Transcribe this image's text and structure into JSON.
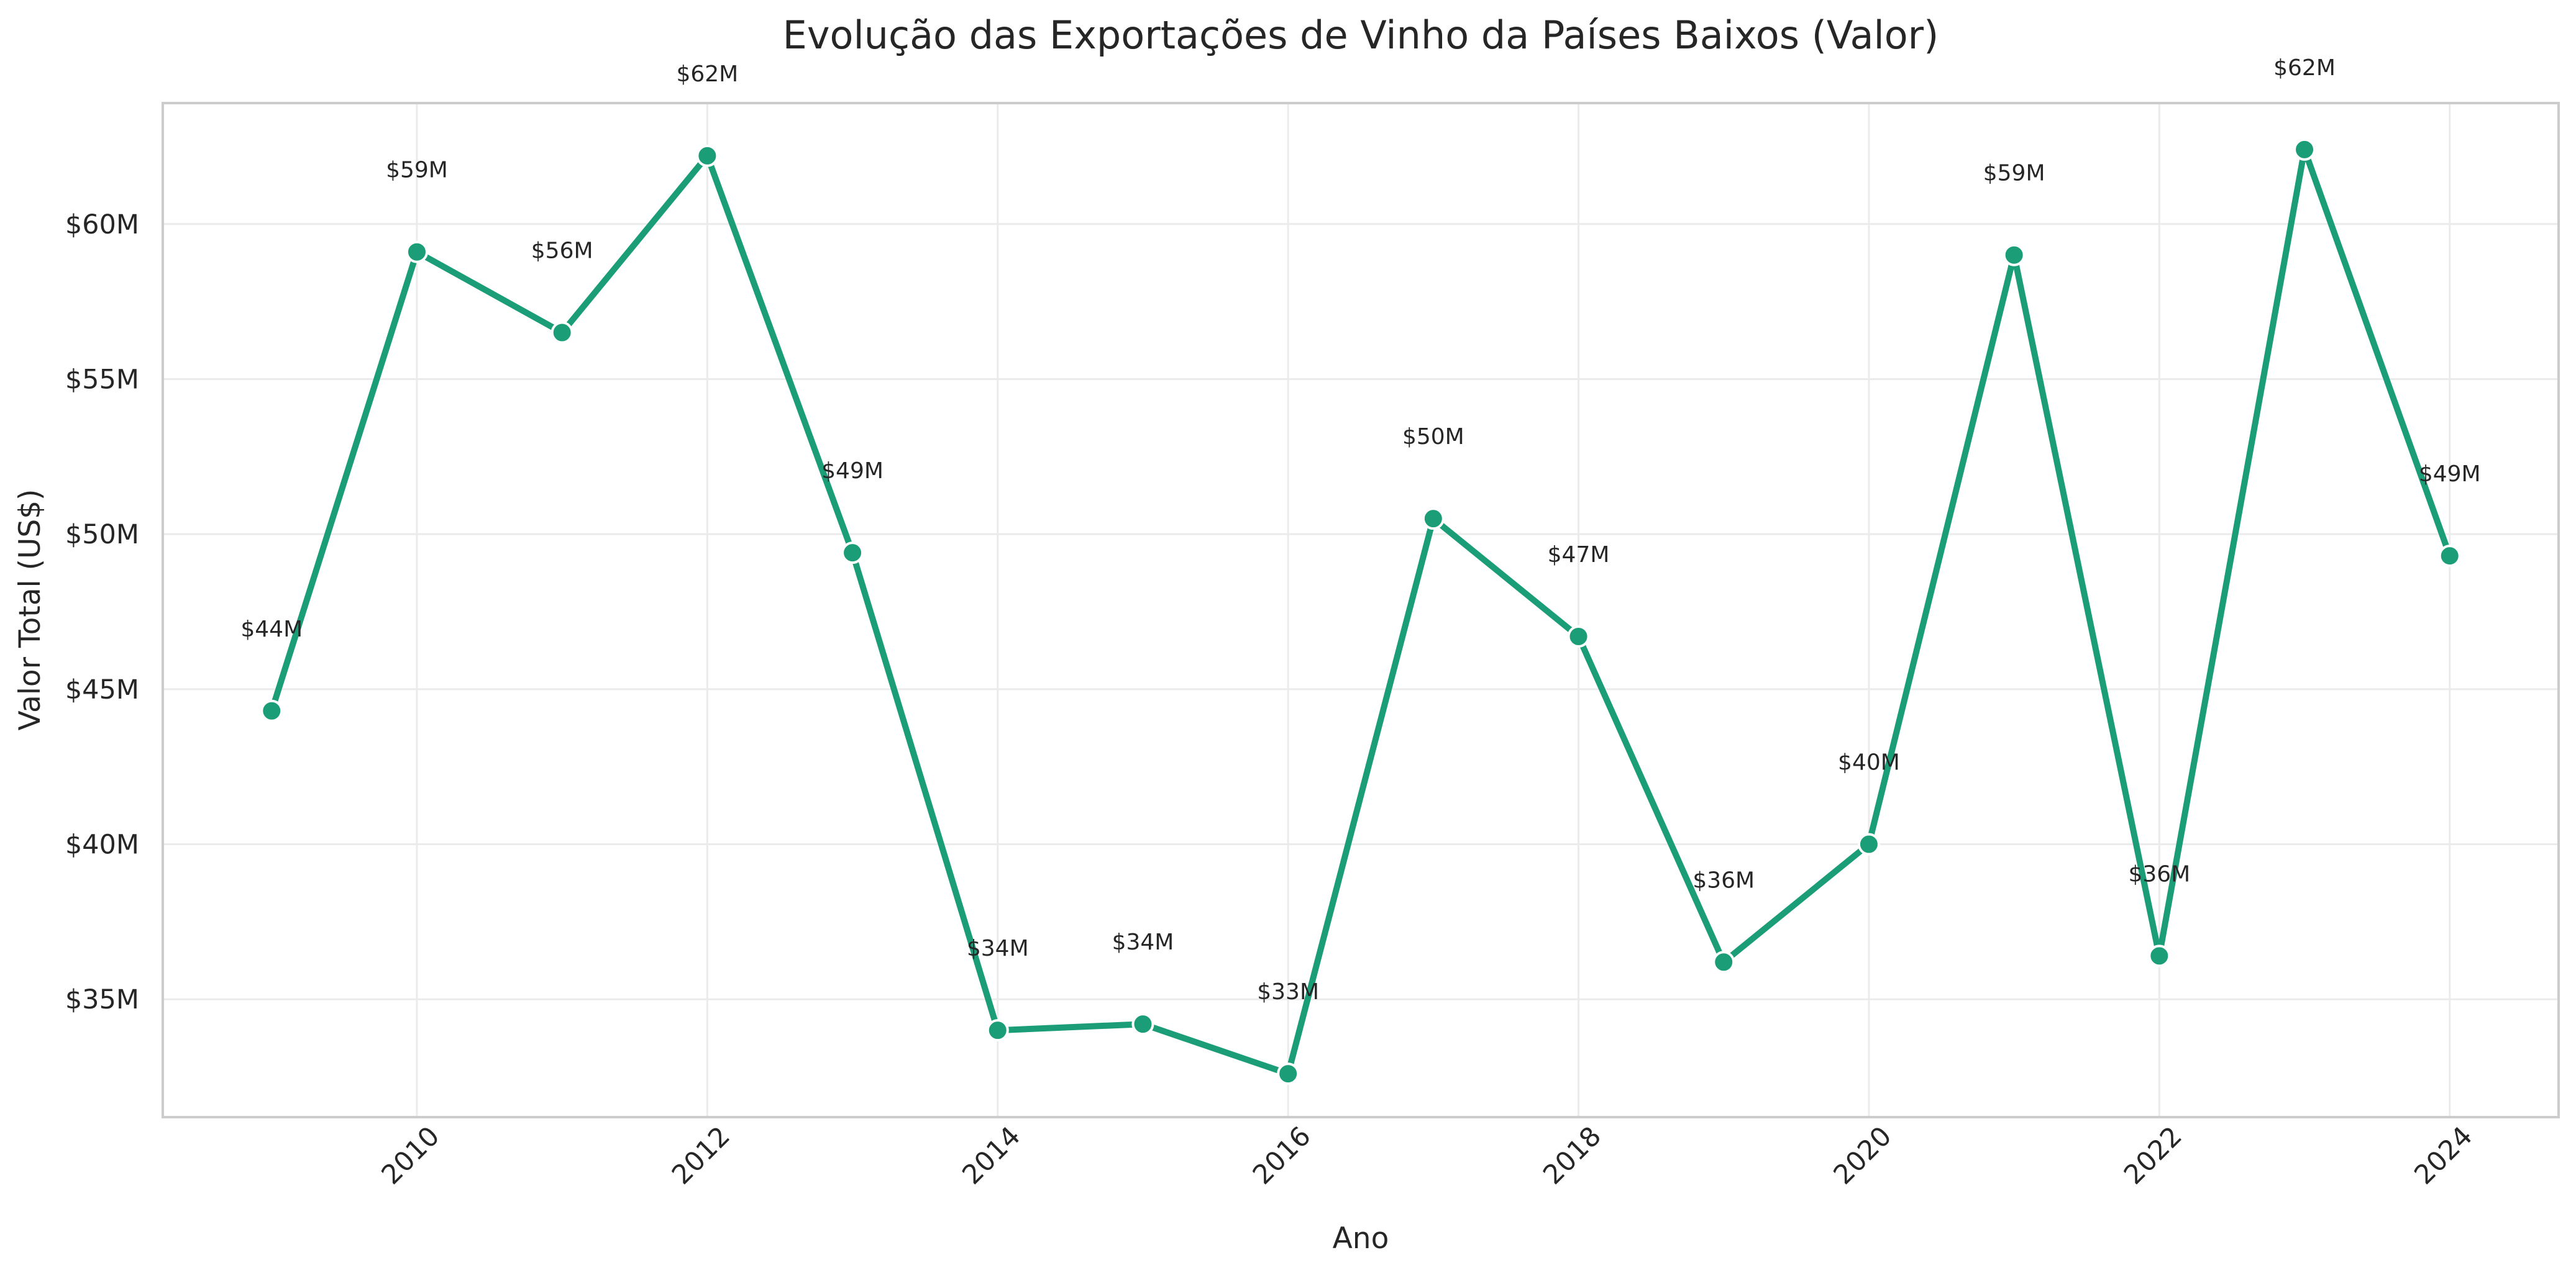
{
  "chart_data": {
    "type": "line",
    "title": "Evolução das Exportações de Vinho da Países Baixos (Valor)",
    "xlabel": "Ano",
    "ylabel": "Valor Total (US$)",
    "xlim": [
      2008.25,
      2024.75
    ],
    "ylim": [
      31.2,
      63.9
    ],
    "x_ticks": [
      2010,
      2012,
      2014,
      2016,
      2018,
      2020,
      2022,
      2024
    ],
    "x_tick_labels": [
      "2010",
      "2012",
      "2014",
      "2016",
      "2018",
      "2020",
      "2022",
      "2024"
    ],
    "y_ticks": [
      35,
      40,
      45,
      50,
      55,
      60
    ],
    "y_tick_labels": [
      "$35M",
      "$40M",
      "$45M",
      "$50M",
      "$55M",
      "$60M"
    ],
    "grid": true,
    "color": "#1b9e77",
    "series": [
      {
        "x": [
          2009,
          2010,
          2011,
          2012,
          2013,
          2014,
          2015,
          2016,
          2017,
          2018,
          2019,
          2020,
          2021,
          2022,
          2023,
          2024
        ],
        "values": [
          44.3,
          59.1,
          56.5,
          62.2,
          49.4,
          34.0,
          34.2,
          32.6,
          50.5,
          46.7,
          36.2,
          40.0,
          59.0,
          36.4,
          62.4,
          49.3
        ],
        "labels": [
          "$44M",
          "$59M",
          "$56M",
          "$62M",
          "$49M",
          "$34M",
          "$34M",
          "$33M",
          "$50M",
          "$47M",
          "$36M",
          "$40M",
          "$59M",
          "$36M",
          "$62M",
          "$49M"
        ]
      }
    ]
  }
}
